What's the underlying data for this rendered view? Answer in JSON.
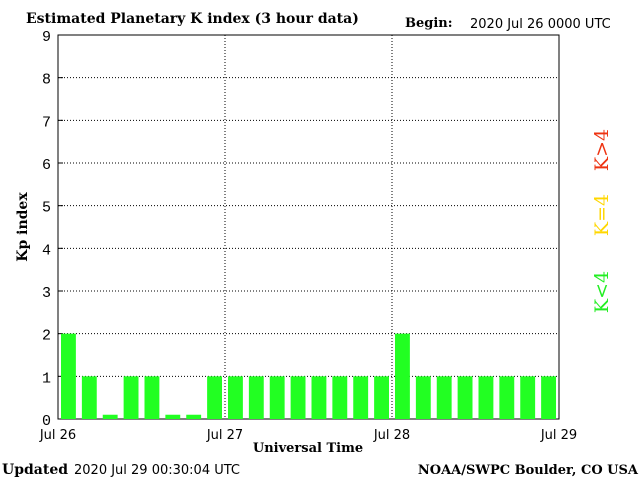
{
  "header": {
    "title": "Estimated Planetary K index (3 hour data)",
    "begin_label": "Begin:",
    "begin_value": "2020 Jul 26 0000 UTC"
  },
  "footer": {
    "updated_label": "Updated",
    "updated_value": "2020 Jul 29 00:30:04 UTC",
    "source": "NOAA/SWPC Boulder, CO USA"
  },
  "legend": {
    "items": [
      {
        "label": "K<4",
        "color": "#22ee22"
      },
      {
        "label": "K=4",
        "color": "#ffd700"
      },
      {
        "label": "K>4",
        "color": "#ee3311"
      }
    ]
  },
  "chart_data": {
    "type": "bar",
    "xlabel": "Universal Time",
    "ylabel": "Kp index",
    "ylim": [
      0,
      9
    ],
    "yticks": [
      "0",
      "1",
      "2",
      "3",
      "4",
      "5",
      "6",
      "7",
      "8",
      "9"
    ],
    "xticks": [
      "Jul 26",
      "Jul 27",
      "Jul 28",
      "Jul 29"
    ],
    "bin_hours": 3,
    "bar_color": "#22ff22",
    "grid": "dotted",
    "values": [
      2,
      1,
      0.1,
      1,
      1,
      0.1,
      0.1,
      1,
      1,
      1,
      1,
      1,
      1,
      1,
      1,
      1,
      2,
      1,
      1,
      1,
      1,
      1,
      1,
      1
    ]
  }
}
